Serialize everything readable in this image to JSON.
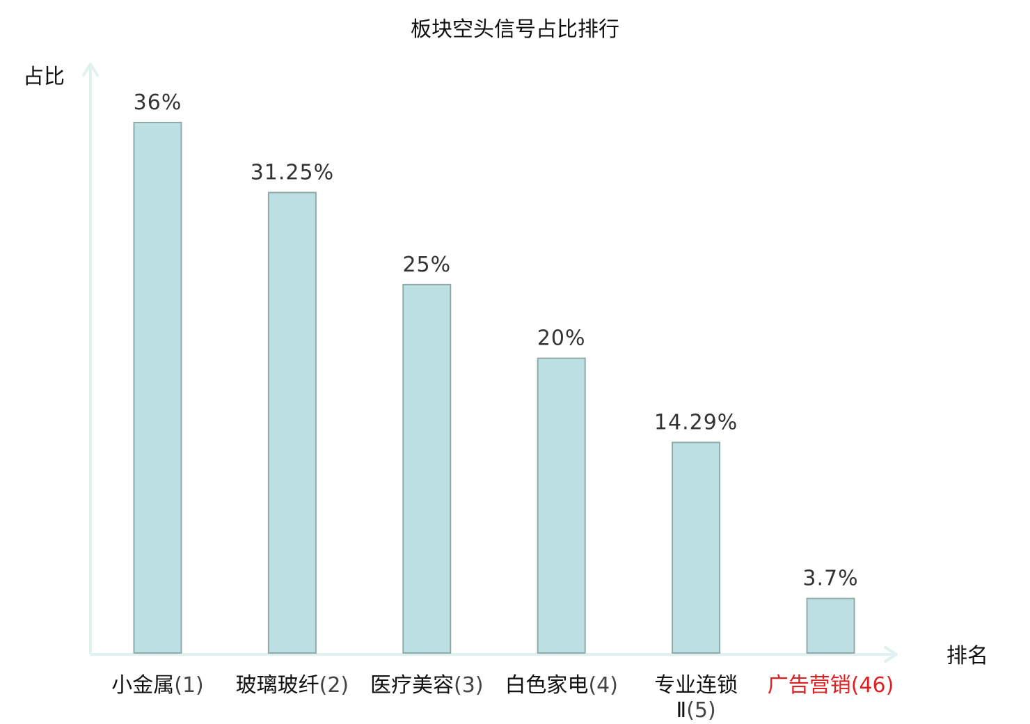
{
  "chart_data": {
    "type": "bar",
    "title": "板块空头信号占比排行",
    "xlabel": "排名",
    "ylabel": "占比",
    "ylim": [
      0,
      36
    ],
    "grid": false,
    "legend": "none",
    "categories": [
      {
        "name": "小金属",
        "rank": "(1)",
        "highlight": false
      },
      {
        "name": "玻璃玻纤",
        "rank": "(2)",
        "highlight": false
      },
      {
        "name": "医疗美容",
        "rank": "(3)",
        "highlight": false
      },
      {
        "name": "白色家电",
        "rank": "(4)",
        "highlight": false
      },
      {
        "name": "专业连锁",
        "name_line2": "Ⅱ",
        "rank": "(5)",
        "highlight": false
      },
      {
        "name": "广告营销",
        "rank": "(46)",
        "highlight": true
      }
    ],
    "values": [
      36,
      31.25,
      25,
      20,
      14.29,
      3.7
    ],
    "value_labels": [
      "36%",
      "31.25%",
      "25%",
      "20%",
      "14.29%",
      "3.7%"
    ],
    "colors": {
      "bar_fill": "#bde0e2",
      "bar_stroke": "#8faaab",
      "axis": "#dff2ef",
      "highlight": "#e02020"
    }
  }
}
